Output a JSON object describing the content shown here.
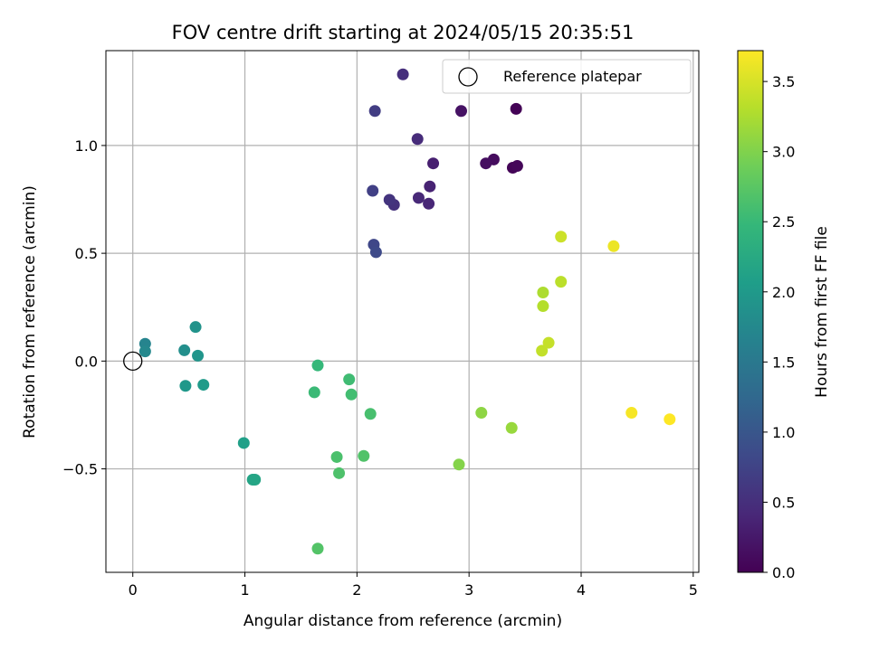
{
  "chart_data": {
    "type": "scatter",
    "title": "FOV centre drift starting at 2024/05/15 20:35:51",
    "xlabel": "Angular distance from reference (arcmin)",
    "ylabel": "Rotation from reference (arcmin)",
    "xlim": [
      -0.24,
      5.05
    ],
    "ylim": [
      -0.98,
      1.44
    ],
    "xticks": [
      0,
      1,
      2,
      3,
      4,
      5
    ],
    "xtick_labels": [
      "0",
      "1",
      "2",
      "3",
      "4",
      "5"
    ],
    "yticks": [
      -0.5,
      0.0,
      0.5,
      1.0
    ],
    "ytick_labels": [
      "−0.5",
      "0.0",
      "0.5",
      "1.0"
    ],
    "grid": true,
    "legend": {
      "position": "top-right",
      "entries": [
        "Reference platepar"
      ]
    },
    "reference_point": {
      "x": 0,
      "y": 0
    },
    "colorbar": {
      "label": "Hours from first FF file",
      "colormap": "viridis",
      "range": [
        0,
        3.72
      ],
      "ticks": [
        0.0,
        0.5,
        1.0,
        1.5,
        2.0,
        2.5,
        3.0,
        3.5
      ],
      "tick_labels": [
        "0.0",
        "0.5",
        "1.0",
        "1.5",
        "2.0",
        "2.5",
        "3.0",
        "3.5"
      ]
    },
    "colormap_stops": [
      "#440154",
      "#482878",
      "#3e4989",
      "#31688e",
      "#26828e",
      "#1f9e89",
      "#35b779",
      "#6ece58",
      "#b5de2b",
      "#fde725"
    ],
    "points": [
      {
        "x": 3.42,
        "y": 1.17,
        "c": 0.02
      },
      {
        "x": 3.39,
        "y": 0.897,
        "c": 0.04
      },
      {
        "x": 3.43,
        "y": 0.905,
        "c": 0.06
      },
      {
        "x": 3.22,
        "y": 0.935,
        "c": 0.12
      },
      {
        "x": 3.15,
        "y": 0.917,
        "c": 0.14
      },
      {
        "x": 2.93,
        "y": 1.16,
        "c": 0.18
      },
      {
        "x": 2.68,
        "y": 0.917,
        "c": 0.32
      },
      {
        "x": 2.65,
        "y": 0.81,
        "c": 0.36
      },
      {
        "x": 2.64,
        "y": 0.73,
        "c": 0.4
      },
      {
        "x": 2.55,
        "y": 0.757,
        "c": 0.42
      },
      {
        "x": 2.54,
        "y": 1.03,
        "c": 0.46
      },
      {
        "x": 2.41,
        "y": 1.33,
        "c": 0.5
      },
      {
        "x": 2.33,
        "y": 0.725,
        "c": 0.52
      },
      {
        "x": 2.29,
        "y": 0.748,
        "c": 0.56
      },
      {
        "x": 2.16,
        "y": 1.16,
        "c": 0.68
      },
      {
        "x": 2.14,
        "y": 0.79,
        "c": 0.72
      },
      {
        "x": 2.15,
        "y": 0.54,
        "c": 0.8
      },
      {
        "x": 2.17,
        "y": 0.505,
        "c": 0.84
      },
      {
        "x": 0.11,
        "y": 0.08,
        "c": 1.68
      },
      {
        "x": 0.11,
        "y": 0.045,
        "c": 1.74
      },
      {
        "x": 0.46,
        "y": 0.05,
        "c": 1.84
      },
      {
        "x": 0.56,
        "y": 0.158,
        "c": 1.9
      },
      {
        "x": 0.58,
        "y": 0.025,
        "c": 1.94
      },
      {
        "x": 0.47,
        "y": -0.115,
        "c": 1.98
      },
      {
        "x": 0.63,
        "y": -0.11,
        "c": 2.02
      },
      {
        "x": 0.99,
        "y": -0.38,
        "c": 2.1
      },
      {
        "x": 1.07,
        "y": -0.55,
        "c": 2.16
      },
      {
        "x": 1.09,
        "y": -0.55,
        "c": 2.18
      },
      {
        "x": 1.65,
        "y": -0.02,
        "c": 2.48
      },
      {
        "x": 1.62,
        "y": -0.145,
        "c": 2.52
      },
      {
        "x": 1.93,
        "y": -0.085,
        "c": 2.56
      },
      {
        "x": 1.95,
        "y": -0.155,
        "c": 2.58
      },
      {
        "x": 2.12,
        "y": -0.245,
        "c": 2.62
      },
      {
        "x": 1.82,
        "y": -0.445,
        "c": 2.64
      },
      {
        "x": 1.84,
        "y": -0.52,
        "c": 2.66
      },
      {
        "x": 2.06,
        "y": -0.44,
        "c": 2.68
      },
      {
        "x": 1.65,
        "y": -0.87,
        "c": 2.7
      },
      {
        "x": 2.91,
        "y": -0.48,
        "c": 3.02
      },
      {
        "x": 3.11,
        "y": -0.24,
        "c": 3.08
      },
      {
        "x": 3.38,
        "y": -0.31,
        "c": 3.14
      },
      {
        "x": 3.66,
        "y": 0.318,
        "c": 3.26
      },
      {
        "x": 3.66,
        "y": 0.255,
        "c": 3.3
      },
      {
        "x": 3.82,
        "y": 0.368,
        "c": 3.34
      },
      {
        "x": 3.65,
        "y": 0.048,
        "c": 3.38
      },
      {
        "x": 3.71,
        "y": 0.085,
        "c": 3.4
      },
      {
        "x": 3.82,
        "y": 0.577,
        "c": 3.44
      },
      {
        "x": 4.29,
        "y": 0.533,
        "c": 3.62
      },
      {
        "x": 4.45,
        "y": -0.24,
        "c": 3.68
      },
      {
        "x": 4.79,
        "y": -0.27,
        "c": 3.72
      }
    ]
  }
}
